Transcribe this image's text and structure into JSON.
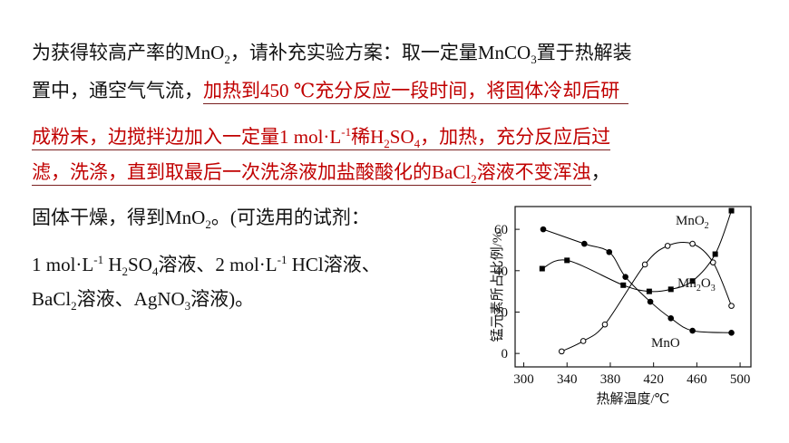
{
  "text": {
    "lines": [
      {
        "segments": [
          {
            "runs": [
              {
                "text": "为获得较高产率的MnO"
              },
              {
                "sub": "2"
              },
              {
                "text": "，请补充实验方案：取一定量MnCO"
              },
              {
                "sub": "3"
              },
              {
                "text": "置于热解装"
              }
            ]
          }
        ]
      },
      {
        "segments": [
          {
            "runs": [
              {
                "text": "置中，通空气气流，"
              }
            ]
          },
          {
            "color": "#c00000",
            "underline": true,
            "runs": [
              {
                "text": "加热到450 ℃充分反应一段时间，将固体冷却后研"
              }
            ]
          }
        ]
      },
      {
        "segments": [
          {
            "color": "#c00000",
            "underline": true,
            "runs": [
              {
                "text": "成粉末，边搅拌边加入一定量1 mol·L"
              },
              {
                "sup": "-1"
              },
              {
                "text": "稀H"
              },
              {
                "sub": "2"
              },
              {
                "text": "SO"
              },
              {
                "sub": "4"
              },
              {
                "text": "，加热，充分反应后过"
              }
            ]
          }
        ]
      },
      {
        "segments": [
          {
            "color": "#c00000",
            "underline": true,
            "runs": [
              {
                "text": "滤，洗涤，直到取最后一次洗涤液加盐酸酸化的BaCl"
              },
              {
                "sub": "2"
              },
              {
                "text": "溶液不变浑浊"
              }
            ]
          },
          {
            "runs": [
              {
                "text": "，"
              }
            ]
          }
        ]
      },
      {
        "segments": [
          {
            "runs": [
              {
                "text": "固体干燥，得到MnO"
              },
              {
                "sub": "2"
              },
              {
                "text": "。(可选用的试剂："
              }
            ]
          }
        ]
      },
      {
        "segments": [
          {
            "runs": [
              {
                "text": "1 mol·L"
              },
              {
                "sup": "-1"
              },
              {
                "text": " H"
              },
              {
                "sub": "2"
              },
              {
                "text": "SO"
              },
              {
                "sub": "4"
              },
              {
                "text": "溶液、2 mol·L"
              },
              {
                "sup": "-1"
              },
              {
                "text": " HCl溶液、"
              }
            ]
          }
        ]
      },
      {
        "segments": [
          {
            "runs": [
              {
                "text": "BaCl"
              },
              {
                "sub": "2"
              },
              {
                "text": "溶液、AgNO"
              },
              {
                "sub": "3"
              },
              {
                "text": "溶液)。"
              }
            ]
          }
        ]
      }
    ]
  },
  "chart_data": {
    "type": "line",
    "xlabel": "热解温度/℃",
    "ylabel": "锰元素所占比例/%",
    "xlim": [
      292,
      510
    ],
    "ylim": [
      -6.5,
      71
    ],
    "xticks": [
      300,
      340,
      380,
      420,
      460,
      500
    ],
    "yticks": [
      0,
      20,
      40,
      60
    ],
    "series": [
      {
        "label": [
          {
            "text": "MnO"
          },
          {
            "sub": "2"
          }
        ],
        "marker": "open-circle",
        "color": "#000000",
        "x": [
          335,
          355,
          375,
          412,
          433,
          456,
          475,
          492
        ],
        "values": [
          1,
          6,
          14,
          43,
          52,
          53,
          44,
          23
        ]
      },
      {
        "label": [
          {
            "text": "Mn"
          },
          {
            "sub": "2"
          },
          {
            "text": "O"
          },
          {
            "sub": "3"
          }
        ],
        "marker": "square",
        "color": "#000000",
        "x": [
          317,
          340,
          392,
          416,
          436,
          456,
          477,
          492
        ],
        "values": [
          41,
          45,
          33,
          30,
          31,
          35,
          48,
          69
        ]
      },
      {
        "label": [
          {
            "text": "MnO"
          }
        ],
        "marker": "circle",
        "color": "#000000",
        "x": [
          318,
          356,
          379,
          394,
          417,
          436,
          456,
          492
        ],
        "values": [
          60,
          53,
          49,
          37,
          25,
          17,
          11,
          10
        ]
      }
    ]
  }
}
